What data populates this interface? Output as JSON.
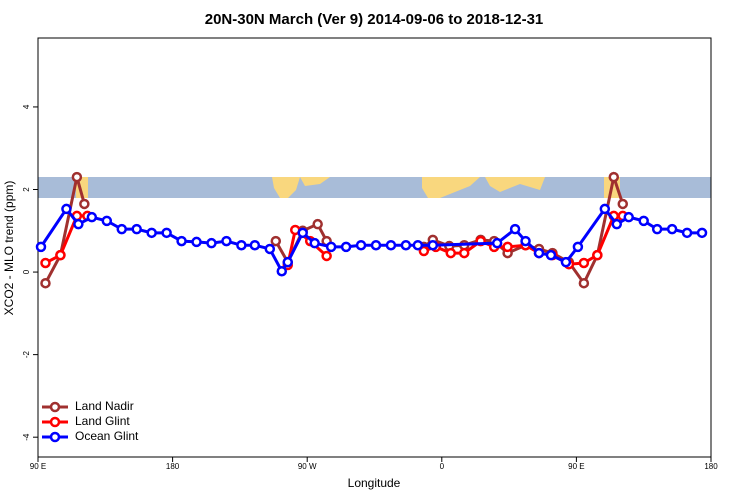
{
  "chart_data": {
    "type": "line",
    "title": "20N-30N March (Ver 9)   2014-09-06 to 2018-12-31",
    "xlabel": "Longitude",
    "ylabel": "XCO2 - MLO trend (ppm)",
    "xlim": [
      90,
      540
    ],
    "ylim": [
      -4.48,
      5.67
    ],
    "xticks": [
      {
        "value": 90,
        "label": "90 E"
      },
      180,
      {
        "value": 270,
        "label": "90 W"
      },
      {
        "value": 360,
        "label": "0"
      },
      {
        "value": 450,
        "label": "90 E"
      },
      {
        "value": 540,
        "label": "180"
      }
    ],
    "yticks": [
      -4,
      -2,
      0,
      2,
      4
    ],
    "legend": "bottom-left",
    "series": [
      {
        "name": "Land Nadir",
        "color": "#a0302f",
        "x": [
          95,
          105,
          116,
          121,
          null,
          249,
          257,
          267,
          277,
          283,
          null,
          348,
          354,
          365,
          375,
          386,
          395,
          404,
          416,
          425,
          434,
          445,
          455,
          464,
          475,
          481
        ],
        "values": [
          -0.27,
          0.41,
          2.3,
          1.65,
          null,
          0.75,
          0.24,
          1.0,
          1.16,
          0.75,
          null,
          0.61,
          0.78,
          0.63,
          0.65,
          0.78,
          0.75,
          0.46,
          0.65,
          0.56,
          0.46,
          0.24,
          -0.27,
          0.41,
          2.3,
          1.65
        ]
      },
      {
        "name": "Land Glint",
        "color": "#ff0000",
        "x": [
          95,
          105,
          116,
          123,
          null,
          257,
          262,
          272,
          283,
          null,
          348,
          356,
          366,
          375,
          386,
          395,
          404,
          416,
          425,
          434,
          445,
          455,
          464,
          475,
          481
        ],
        "values": [
          0.22,
          0.41,
          1.36,
          1.36,
          null,
          0.17,
          1.02,
          0.75,
          0.39,
          null,
          0.51,
          0.61,
          0.46,
          0.46,
          0.75,
          0.61,
          0.61,
          0.65,
          0.46,
          0.41,
          0.19,
          0.22,
          0.41,
          1.36,
          1.36
        ]
      },
      {
        "name": "Ocean Glint",
        "color": "#0000ff",
        "x": [
          92,
          109,
          117,
          126,
          136,
          146,
          156,
          166,
          176,
          186,
          196,
          206,
          216,
          226,
          235,
          245,
          253,
          257,
          267,
          275,
          286,
          296,
          306,
          316,
          326,
          336,
          344,
          354,
          397,
          409,
          416,
          425,
          433,
          443,
          451,
          469,
          477,
          485,
          495,
          504,
          514,
          524,
          534
        ],
        "values": [
          0.61,
          1.53,
          1.16,
          1.33,
          1.24,
          1.04,
          1.04,
          0.95,
          0.95,
          0.75,
          0.73,
          0.7,
          0.75,
          0.65,
          0.65,
          0.56,
          0.02,
          0.24,
          0.95,
          0.7,
          0.61,
          0.61,
          0.65,
          0.65,
          0.65,
          0.65,
          0.65,
          0.65,
          0.7,
          1.04,
          0.75,
          0.46,
          0.41,
          0.24,
          0.61,
          1.53,
          1.16,
          1.33,
          1.24,
          1.04,
          1.04,
          0.95,
          0.95
        ]
      }
    ]
  }
}
